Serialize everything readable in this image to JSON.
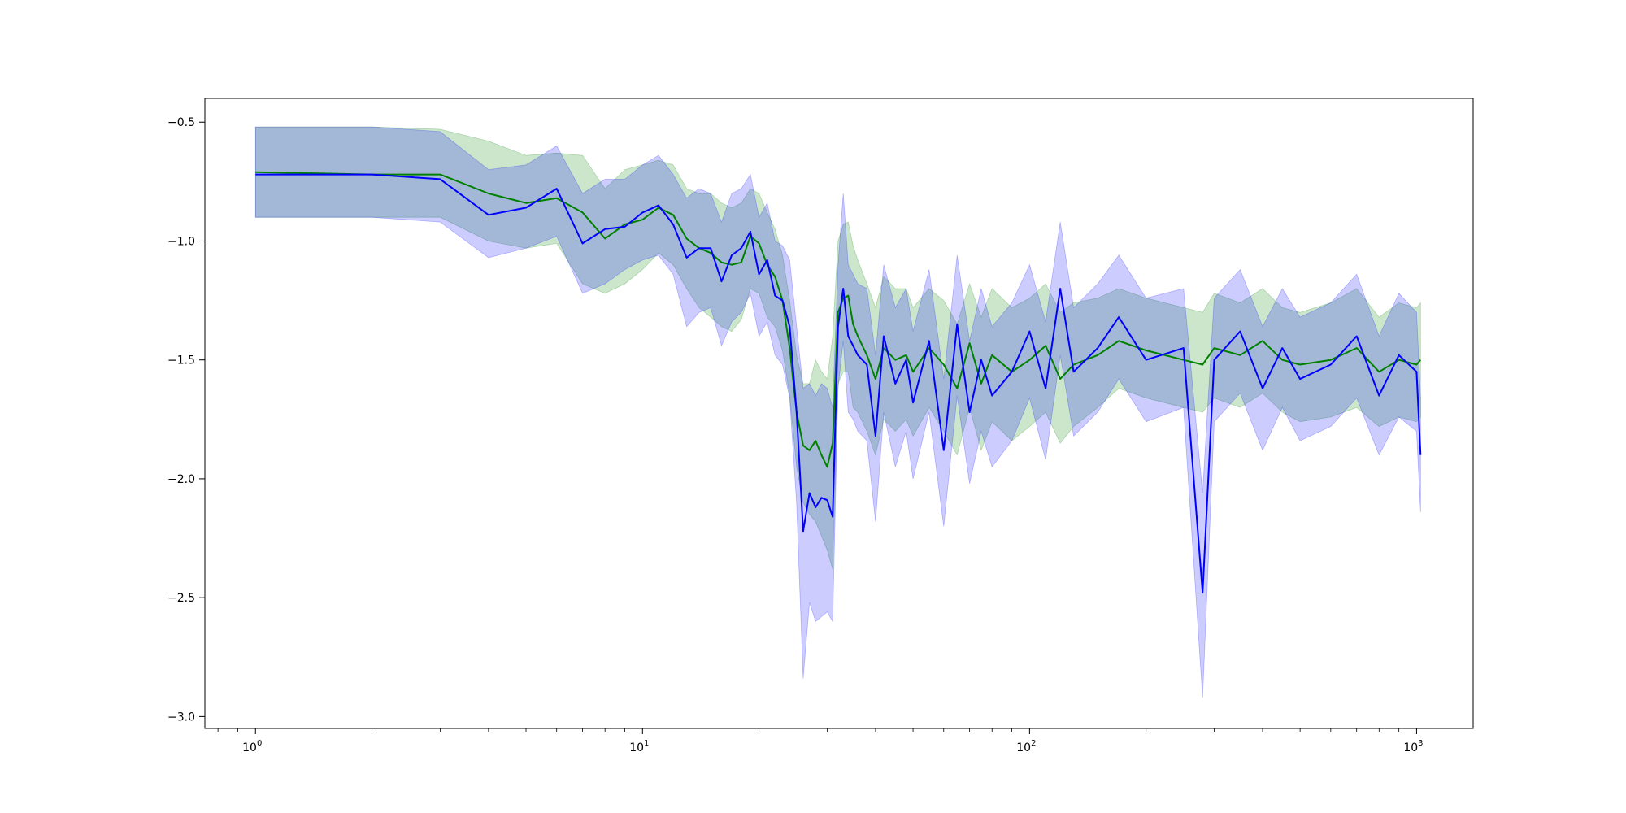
{
  "chart_data": {
    "type": "line",
    "title": "",
    "xlabel": "",
    "ylabel": "",
    "xscale": "log",
    "xlim": [
      0.74,
      1400
    ],
    "ylim": [
      -3.05,
      -0.4
    ],
    "grid": false,
    "legend": "none",
    "x_ticks": [
      {
        "base": "10",
        "exp": "0",
        "value": 1
      },
      {
        "base": "10",
        "exp": "1",
        "value": 10
      },
      {
        "base": "10",
        "exp": "2",
        "value": 100
      },
      {
        "base": "10",
        "exp": "3",
        "value": 1000
      }
    ],
    "y_ticks": [
      {
        "label": "−0.5",
        "value": -0.5
      },
      {
        "label": "−1.0",
        "value": -1.0
      },
      {
        "label": "−1.5",
        "value": -1.5
      },
      {
        "label": "−2.0",
        "value": -2.0
      },
      {
        "label": "−2.5",
        "value": -2.5
      },
      {
        "label": "−3.0",
        "value": -3.0
      }
    ],
    "series": [
      {
        "color": "#008000",
        "band_color": "#008000",
        "band_opacity": 0.2,
        "x": [
          1,
          2,
          3,
          4,
          5,
          6,
          7,
          8,
          9,
          10,
          11,
          12,
          13,
          14,
          15,
          16,
          17,
          18,
          19,
          20,
          21,
          22,
          23,
          24,
          25,
          26,
          27,
          28,
          29,
          30,
          31,
          32,
          33,
          34,
          35,
          36,
          38,
          40,
          42,
          45,
          48,
          50,
          55,
          60,
          65,
          70,
          75,
          80,
          90,
          100,
          110,
          120,
          130,
          150,
          170,
          200,
          250,
          280,
          300,
          350,
          400,
          450,
          500,
          600,
          700,
          800,
          900,
          1000,
          1024
        ],
        "y": [
          -0.71,
          -0.72,
          -0.72,
          -0.8,
          -0.84,
          -0.82,
          -0.88,
          -0.99,
          -0.93,
          -0.91,
          -0.86,
          -0.89,
          -0.99,
          -1.03,
          -1.05,
          -1.09,
          -1.1,
          -1.09,
          -0.98,
          -1.01,
          -1.1,
          -1.15,
          -1.25,
          -1.45,
          -1.72,
          -1.86,
          -1.88,
          -1.84,
          -1.9,
          -1.95,
          -1.85,
          -1.3,
          -1.24,
          -1.23,
          -1.35,
          -1.4,
          -1.48,
          -1.58,
          -1.45,
          -1.5,
          -1.48,
          -1.55,
          -1.45,
          -1.52,
          -1.62,
          -1.43,
          -1.6,
          -1.48,
          -1.55,
          -1.5,
          -1.44,
          -1.58,
          -1.52,
          -1.48,
          -1.42,
          -1.46,
          -1.5,
          -1.52,
          -1.45,
          -1.48,
          -1.42,
          -1.5,
          -1.52,
          -1.5,
          -1.45,
          -1.55,
          -1.5,
          -1.52,
          -1.5
        ],
        "lower": [
          -0.9,
          -0.9,
          -0.9,
          -1.0,
          -1.03,
          -1.01,
          -1.18,
          -1.22,
          -1.18,
          -1.12,
          -1.05,
          -1.1,
          -1.2,
          -1.28,
          -1.32,
          -1.36,
          -1.38,
          -1.33,
          -1.2,
          -1.22,
          -1.32,
          -1.36,
          -1.46,
          -1.65,
          -1.95,
          -2.1,
          -2.15,
          -2.18,
          -2.24,
          -2.3,
          -2.38,
          -1.6,
          -1.55,
          -1.55,
          -1.7,
          -1.72,
          -1.8,
          -1.9,
          -1.75,
          -1.8,
          -1.75,
          -1.82,
          -1.7,
          -1.8,
          -1.9,
          -1.7,
          -1.88,
          -1.76,
          -1.84,
          -1.78,
          -1.72,
          -1.85,
          -1.78,
          -1.7,
          -1.62,
          -1.66,
          -1.7,
          -1.72,
          -1.66,
          -1.7,
          -1.64,
          -1.72,
          -1.76,
          -1.74,
          -1.7,
          -1.78,
          -1.74,
          -1.76,
          -1.74
        ],
        "upper": [
          -0.52,
          -0.52,
          -0.53,
          -0.58,
          -0.64,
          -0.63,
          -0.64,
          -0.78,
          -0.7,
          -0.68,
          -0.66,
          -0.68,
          -0.78,
          -0.8,
          -0.8,
          -0.84,
          -0.86,
          -0.84,
          -0.78,
          -0.8,
          -0.88,
          -0.95,
          -1.06,
          -1.25,
          -1.48,
          -1.6,
          -1.6,
          -1.5,
          -1.55,
          -1.58,
          -1.4,
          -1.0,
          -0.93,
          -0.92,
          -1.02,
          -1.08,
          -1.18,
          -1.28,
          -1.15,
          -1.2,
          -1.2,
          -1.28,
          -1.2,
          -1.25,
          -1.35,
          -1.18,
          -1.32,
          -1.2,
          -1.28,
          -1.24,
          -1.18,
          -1.3,
          -1.26,
          -1.24,
          -1.2,
          -1.24,
          -1.28,
          -1.3,
          -1.22,
          -1.26,
          -1.2,
          -1.28,
          -1.3,
          -1.26,
          -1.2,
          -1.32,
          -1.26,
          -1.28,
          -1.26
        ]
      },
      {
        "color": "#0000ff",
        "band_color": "#0000ff",
        "band_opacity": 0.2,
        "x": [
          1,
          2,
          3,
          4,
          5,
          6,
          7,
          8,
          9,
          10,
          11,
          12,
          13,
          14,
          15,
          16,
          17,
          18,
          19,
          20,
          21,
          22,
          23,
          24,
          25,
          26,
          27,
          28,
          29,
          30,
          31,
          32,
          33,
          34,
          35,
          36,
          38,
          40,
          42,
          45,
          48,
          50,
          55,
          60,
          65,
          70,
          75,
          80,
          90,
          100,
          110,
          120,
          130,
          150,
          170,
          200,
          250,
          280,
          300,
          350,
          400,
          450,
          500,
          600,
          700,
          800,
          900,
          1000,
          1024
        ],
        "y": [
          -0.72,
          -0.72,
          -0.74,
          -0.89,
          -0.86,
          -0.78,
          -1.01,
          -0.95,
          -0.94,
          -0.88,
          -0.85,
          -0.93,
          -1.07,
          -1.03,
          -1.03,
          -1.17,
          -1.06,
          -1.03,
          -0.96,
          -1.14,
          -1.08,
          -1.23,
          -1.25,
          -1.36,
          -1.72,
          -2.22,
          -2.06,
          -2.12,
          -2.08,
          -2.09,
          -2.16,
          -1.36,
          -1.2,
          -1.4,
          -1.44,
          -1.48,
          -1.52,
          -1.82,
          -1.4,
          -1.6,
          -1.5,
          -1.68,
          -1.42,
          -1.88,
          -1.35,
          -1.72,
          -1.5,
          -1.65,
          -1.55,
          -1.38,
          -1.62,
          -1.2,
          -1.55,
          -1.45,
          -1.32,
          -1.5,
          -1.45,
          -2.48,
          -1.5,
          -1.38,
          -1.62,
          -1.45,
          -1.58,
          -1.52,
          -1.4,
          -1.65,
          -1.48,
          -1.55,
          -1.9
        ],
        "lower": [
          -0.9,
          -0.9,
          -0.92,
          -1.07,
          -1.03,
          -0.98,
          -1.22,
          -1.18,
          -1.12,
          -1.08,
          -1.06,
          -1.14,
          -1.36,
          -1.3,
          -1.28,
          -1.44,
          -1.34,
          -1.3,
          -1.22,
          -1.4,
          -1.34,
          -1.48,
          -1.52,
          -1.66,
          -2.1,
          -2.84,
          -2.52,
          -2.6,
          -2.58,
          -2.56,
          -2.6,
          -1.62,
          -1.42,
          -1.72,
          -1.75,
          -1.8,
          -1.84,
          -2.18,
          -1.72,
          -1.95,
          -1.8,
          -2.0,
          -1.72,
          -2.2,
          -1.65,
          -2.02,
          -1.8,
          -1.95,
          -1.84,
          -1.66,
          -1.92,
          -1.48,
          -1.82,
          -1.72,
          -1.58,
          -1.76,
          -1.7,
          -2.92,
          -1.76,
          -1.64,
          -1.88,
          -1.7,
          -1.84,
          -1.78,
          -1.66,
          -1.9,
          -1.74,
          -1.8,
          -2.14
        ],
        "upper": [
          -0.52,
          -0.52,
          -0.54,
          -0.7,
          -0.68,
          -0.6,
          -0.8,
          -0.74,
          -0.74,
          -0.68,
          -0.64,
          -0.72,
          -0.82,
          -0.78,
          -0.8,
          -0.92,
          -0.8,
          -0.78,
          -0.72,
          -0.9,
          -0.84,
          -1.0,
          -1.02,
          -1.08,
          -1.36,
          -1.62,
          -1.6,
          -1.65,
          -1.6,
          -1.62,
          -1.7,
          -1.1,
          -0.8,
          -1.1,
          -1.14,
          -1.18,
          -1.2,
          -1.48,
          -1.1,
          -1.28,
          -1.2,
          -1.38,
          -1.12,
          -1.58,
          -1.06,
          -1.42,
          -1.2,
          -1.36,
          -1.26,
          -1.1,
          -1.34,
          -0.92,
          -1.28,
          -1.18,
          -1.06,
          -1.24,
          -1.2,
          -2.06,
          -1.24,
          -1.12,
          -1.36,
          -1.2,
          -1.32,
          -1.26,
          -1.14,
          -1.4,
          -1.22,
          -1.3,
          -1.66
        ]
      }
    ]
  }
}
